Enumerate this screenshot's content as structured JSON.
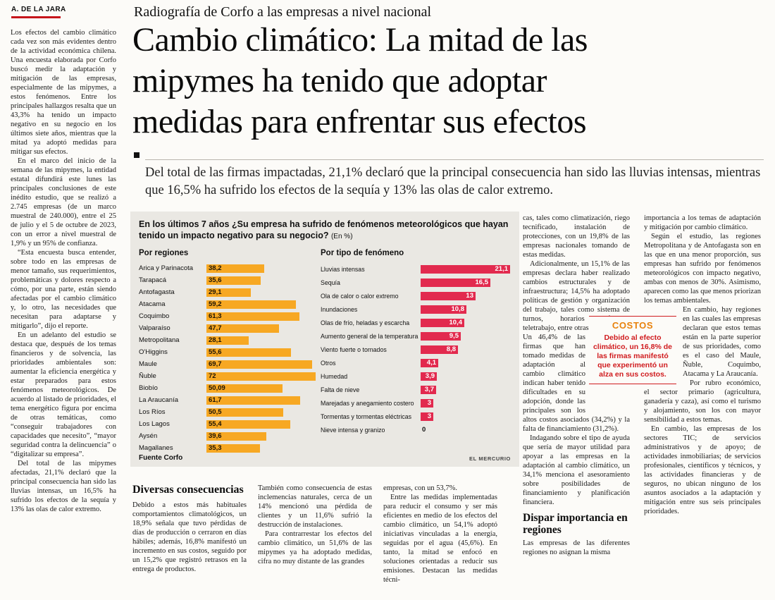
{
  "byline": "A. DE LA JARA",
  "kicker": "Radiografía de Corfo a las empresas a nivel nacional",
  "headline_lines": [
    "Cambio climático: La mitad de las",
    "mipymes ha tenido que adoptar",
    "medidas para enfrentar sus efectos"
  ],
  "deck": "Del total de las firmas impactadas, 21,1% declaró que la principal consecuencia han sido las lluvias intensas, mientras que 16,5% ha sufrido los efectos de la sequía y 13% las olas de calor extremo.",
  "colors": {
    "accent_red": "#c6151b",
    "bar_orange": "#f7a823",
    "bar_red": "#e22a4e",
    "chart_bg": "#eae8e3",
    "costos_orange": "#e8820c",
    "costos_red": "#d01c1f"
  },
  "article": {
    "lead_column": [
      "Los efectos del cambio climático cada vez son más evidentes dentro de la actividad económica chilena. Una encuesta elaborada por Corfo buscó medir la adaptación y mitigación de las empresas, especialmente de las mipymes, a estos fenómenos. Entre los principales hallazgos resalta que un 43,3% ha tenido un impacto negativo en su negocio en los últimos siete años, mientras que la mitad ya adoptó medidas para mitigar sus efectos.",
      "En el marco del inicio de la semana de las mipymes, la entidad estatal difundirá este lunes las principales conclusiones de este inédito estudio, que se realizó a 2.745 empresas (de un marco muestral de 240.000), entre el 25 de julio y el 5 de octubre de 2023, con un error a nivel muestral de 1,9% y un 95% de confianza.",
      "“Esta encuesta busca entender, sobre todo en las empresas de menor tamaño, sus requerimientos, problemáticas y dolores respecto a cómo, por una parte, están siendo afectadas por el cambio climático y, lo otro, las necesidades que necesitan para adaptarse y mitigarlo”, dijo el reporte.",
      "En un adelanto del estudio se destaca que, después de los temas financieros y de solvencia, las prioridades ambientales son: aumentar la eficiencia energética y estar preparados para estos fenómenos meteorológicos. De acuerdo al listado de prioridades, el tema energético figura por encima de otras temáticas, como “conseguir trabajadores con capacidades que necesito”, “mayor seguridad contra la delincuencia” o “digitalizar su empresa”.",
      "Del total de las mipymes afectadas, 21,1% declaró que la principal consecuencia han sido las lluvias intensas, un 16,5% ha sufrido los efectos de la sequía y 13% las olas de calor extremo."
    ],
    "col_a": {
      "heading": "Diversas consecuencias",
      "paragraphs": [
        "Debido a estos más habituales comportamientos climatológicos, un 18,9% señala que tuvo pérdidas de días de producción o cerraron en días hábiles; además, 16,8% manifestó un incremento en sus costos, seguido por un 15,2% que registró retrasos en la entrega de productos."
      ]
    },
    "col_b": {
      "paragraphs": [
        "También como consecuencia de estas inclemencias naturales, cerca de un 14% mencionó una pérdida de clientes y un 11,6% sufrió la destrucción de instalaciones.",
        "Para contrarrestar los efectos del cambio climático, un 51,6% de las mipymes ya ha adoptado medidas, cifra no muy distante de las grandes"
      ]
    },
    "col_c": {
      "paragraphs": [
        "empresas, con un 53,7%.",
        "Entre las medidas implementadas para reducir el consumo y ser más eficientes en medio de los efectos del cambio climático, un 54,1% adoptó iniciativas vinculadas a la energía, seguidas por el agua (45,6%). En tanto, la mitad se enfocó en soluciones orientadas a reducir sus emisiones. Destacan las medidas técni-"
      ]
    },
    "col_d": {
      "paragraphs_top": [
        "cas, tales como climatización, riego tecnificado, instalación de protecciones, con un 19,8% de las empresas nacionales tomando de estas medidas.",
        "Adicionalmente, un 15,1% de las empresas declara haber realizado cambios estructurales y de infraestructura; 14,5% ha adoptado políticas de gestión y organización del trabajo, tales como sistema de turnos, horarios diferidos, teletrabajo, entre otras."
      ],
      "paragraphs_mid": [
        "Un 46,4% de las firmas que han tomado medidas de adaptación al cambio climático indican haber tenido dificultades en su adopción, donde las principales son los altos costos asociados (34,2%) y la falta de financiamiento (31,2%).",
        "Indagando sobre el tipo de ayuda que sería de mayor utilidad para apoyar a las empresas en la adaptación al cambio climático, un 34,1% menciona el asesoramiento sobre posibilidades de financiamiento y planificación financiera."
      ],
      "heading": "Dispar importancia en regiones",
      "paragraphs_bottom": [
        "Las empresas de las diferentes regiones no asignan la misma"
      ]
    },
    "col_e": {
      "paragraphs_top": [
        "importancia a los temas de adaptación y mitigación por cambio climático.",
        "Según el estudio, las regiones Metropolitana y de Antofagasta son en las que en una menor proporción, sus empresas han sufrido por fenómenos meteorológicos con impacto negativo, ambas con menos de 30%. Asimismo, aparecen como las que menos priorizan los temas ambientales."
      ],
      "paragraphs_bottom": [
        "En cambio, hay regiones en las cuales las empresas declaran que estos temas están en la parte superior de sus prioridades, como es el caso del Maule, Ñuble, Coquimbo, Atacama y La Araucanía.",
        "Por rubro económico, el sector primario (agricultura, ganadería y caza), así como el turismo y alojamiento, son los con mayor sensibilidad a estos temas.",
        "En cambio, las empresas de los sectores TIC; de servicios administrativos y de apoyo; de actividades inmobiliarias; de servicios profesionales, científicos y técnicos, y las actividades financieras y de seguros, no ubican ninguno de los asuntos asociados a la adaptación y mitigación entre sus seis principales prioridades."
      ]
    }
  },
  "costos_box": {
    "title": "COSTOS",
    "text": "Debido al efecto climático, un 16,8% de las firmas manifestó que experimentó un alza en sus costos."
  },
  "chart": {
    "title": "En los últimos 7 años ¿Su empresa ha sufrido de fenómenos meteorológicos que hayan tenido un impacto negativo para su negocio?",
    "title_suffix": "(En %)",
    "regions_heading": "Por regiones",
    "phenomena_heading": "Por tipo de fenómeno",
    "source": "Fuente Corfo",
    "credit": "EL MERCURIO"
  },
  "chart_data": [
    {
      "type": "bar",
      "orientation": "horizontal",
      "title": "Por regiones",
      "categories": [
        "Arica y Parinacota",
        "Tarapacá",
        "Antofagasta",
        "Atacama",
        "Coquimbo",
        "Valparaíso",
        "Metropolitana",
        "O'Higgins",
        "Maule",
        "Ñuble",
        "Biobío",
        "La Araucanía",
        "Los Ríos",
        "Los Lagos",
        "Aysén",
        "Magallanes"
      ],
      "values": [
        38.2,
        35.6,
        29.1,
        59.2,
        61.3,
        47.7,
        28.1,
        55.6,
        69.7,
        72,
        50.09,
        61.7,
        50.5,
        55.4,
        39.6,
        35.3
      ],
      "value_labels": [
        "38,2",
        "35,6",
        "29,1",
        "59,2",
        "61,3",
        "47,7",
        "28,1",
        "55,6",
        "69,7",
        "72",
        "50,09",
        "61,7",
        "50,5",
        "55,4",
        "39,6",
        "35,3"
      ],
      "bar_color": "#f7a823",
      "xlim": [
        0,
        75
      ],
      "legend": "none",
      "grid": false
    },
    {
      "type": "bar",
      "orientation": "horizontal",
      "title": "Por tipo de fenómeno",
      "categories": [
        "Lluvias intensas",
        "Sequía",
        "Ola de calor o calor extremo",
        "Inundaciones",
        "Olas de frío, heladas y escarcha",
        "Aumento general de la temperatura",
        "Viento fuerte o tornados",
        "Otros",
        "Humedad",
        "Falta de nieve",
        "Marejadas y anegamiento costero",
        "Tormentas y tormentas eléctricas",
        "Nieve intensa y granizo"
      ],
      "values": [
        21.1,
        16.5,
        13,
        10.8,
        10.4,
        9.5,
        8.8,
        4.1,
        3.9,
        3.7,
        3,
        3,
        0
      ],
      "value_labels": [
        "21,1",
        "16,5",
        "13",
        "10,8",
        "10,4",
        "9,5",
        "8,8",
        "4,1",
        "3,9",
        "3,7",
        "3",
        "3",
        "0"
      ],
      "bar_color": "#e22a4e",
      "xlim": [
        0,
        22
      ],
      "legend": "none",
      "grid": false
    }
  ]
}
